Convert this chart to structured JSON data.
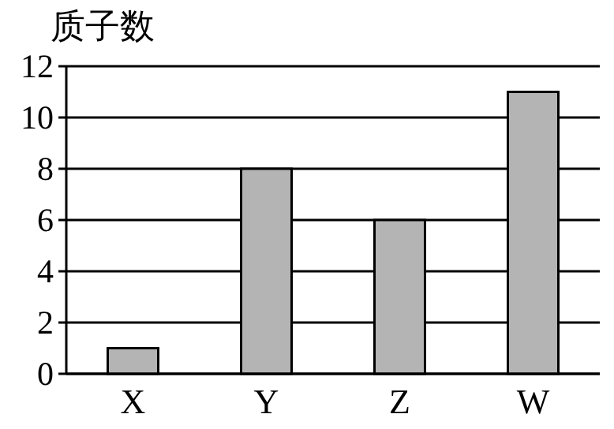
{
  "chart_data": {
    "type": "bar",
    "ylabel": "质子数",
    "categories": [
      "X",
      "Y",
      "Z",
      "W"
    ],
    "values": [
      1,
      8,
      6,
      11
    ],
    "color": "#b4b4b4",
    "ylim": [
      0,
      12
    ],
    "yticks": [
      0,
      2,
      4,
      6,
      8,
      10,
      12
    ],
    "grid": "y"
  }
}
